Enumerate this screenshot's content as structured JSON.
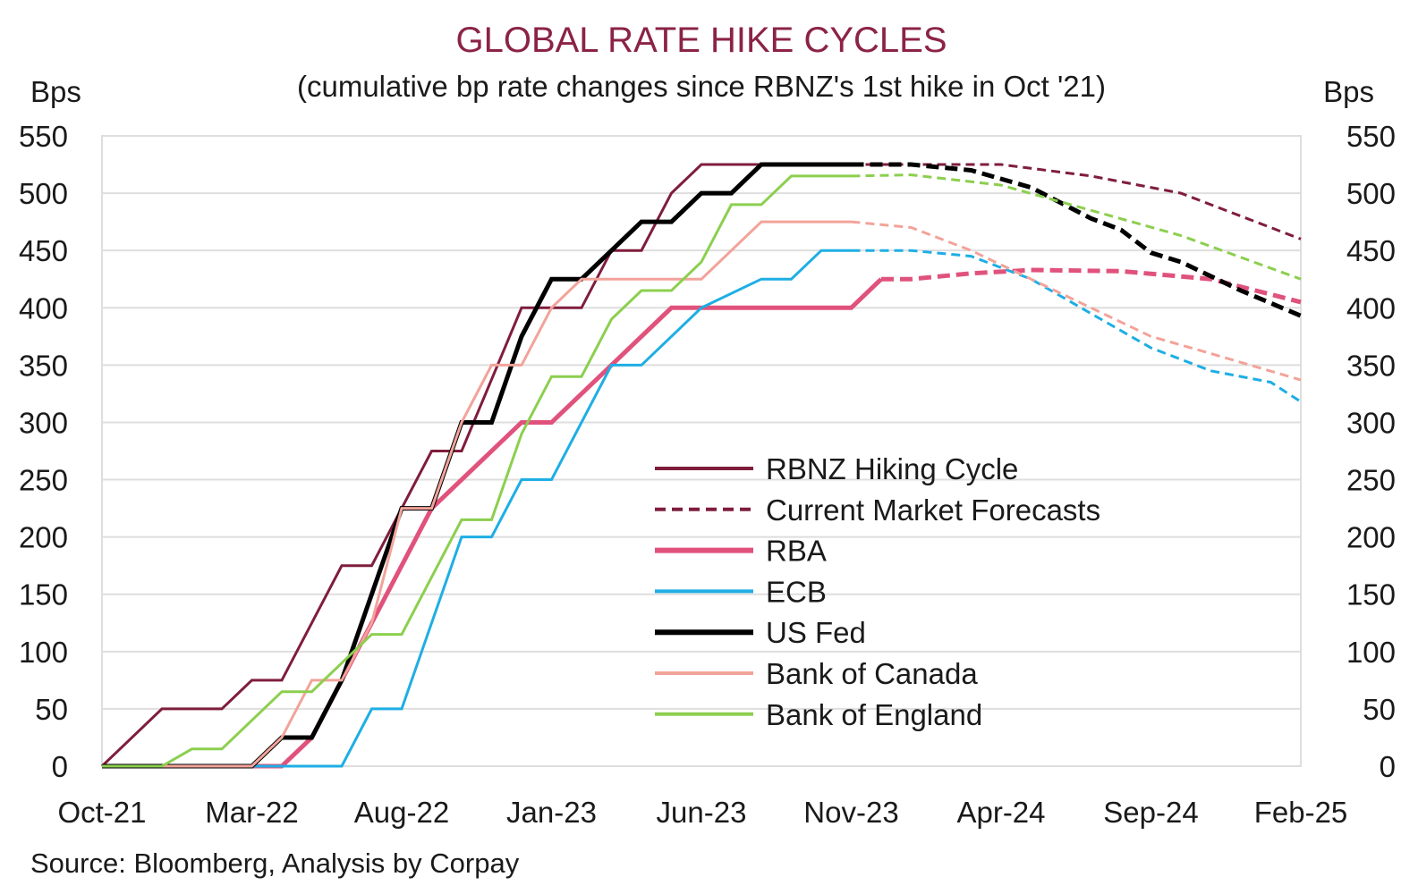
{
  "chart_data": {
    "type": "line",
    "title": "GLOBAL RATE HIKE CYCLES",
    "subtitle": "(cumulative bp rate changes since RBNZ's 1st hike in Oct '21)",
    "ylabel_left": "Bps",
    "ylabel_right": "Bps",
    "ylim": [
      0,
      550
    ],
    "yticks": [
      0,
      50,
      100,
      150,
      200,
      250,
      300,
      350,
      400,
      450,
      500,
      550
    ],
    "x_range": [
      "2021-10",
      "2025-02"
    ],
    "xtick_labels": [
      "Oct-21",
      "Mar-22",
      "Aug-22",
      "Jan-23",
      "Jun-23",
      "Nov-23",
      "Apr-24",
      "Sep-24",
      "Feb-25"
    ],
    "xtick_months": [
      "2021-10",
      "2022-03",
      "2022-08",
      "2023-01",
      "2023-06",
      "2023-11",
      "2024-04",
      "2024-09",
      "2025-02"
    ],
    "grid": "horizontal",
    "legend_position": "center-right",
    "source": "Source: Bloomberg, Analysis by Corpay",
    "legend": [
      {
        "label": "RBNZ Hiking Cycle",
        "color": "#7f1d3c",
        "style": "solid"
      },
      {
        "label": "Current Market Forecasts",
        "color": "#7f1d3c",
        "style": "dashed"
      },
      {
        "label": "RBA",
        "color": "#e0527c",
        "style": "solid"
      },
      {
        "label": "ECB",
        "color": "#1eaee4",
        "style": "solid"
      },
      {
        "label": "US Fed",
        "color": "#000000",
        "style": "solid"
      },
      {
        "label": "Bank of Canada",
        "color": "#f2a39a",
        "style": "solid"
      },
      {
        "label": "Bank of England",
        "color": "#8ccf4f",
        "style": "solid"
      }
    ],
    "series": [
      {
        "name": "RBNZ Hiking Cycle",
        "color": "#7f1d3c",
        "width": 3,
        "actual": [
          [
            "2021-10",
            0
          ],
          [
            "2021-12",
            50
          ],
          [
            "2022-02",
            50
          ],
          [
            "2022-03",
            75
          ],
          [
            "2022-04",
            75
          ],
          [
            "2022-06",
            175
          ],
          [
            "2022-07",
            175
          ],
          [
            "2022-09",
            275
          ],
          [
            "2022-10",
            275
          ],
          [
            "2022-12",
            400
          ],
          [
            "2023-02",
            400
          ],
          [
            "2023-03",
            450
          ],
          [
            "2023-04",
            450
          ],
          [
            "2023-05",
            500
          ],
          [
            "2023-06",
            525
          ],
          [
            "2023-11",
            525
          ]
        ],
        "forecast": [
          [
            "2023-11",
            525
          ],
          [
            "2024-01",
            525
          ],
          [
            "2024-04",
            525
          ],
          [
            "2024-07",
            515
          ],
          [
            "2024-10",
            500
          ],
          [
            "2025-02",
            460
          ]
        ]
      },
      {
        "name": "RBA",
        "color": "#e0527c",
        "width": 5,
        "actual": [
          [
            "2021-10",
            0
          ],
          [
            "2022-04",
            0
          ],
          [
            "2022-05",
            25
          ],
          [
            "2022-06",
            75
          ],
          [
            "2022-08",
            175
          ],
          [
            "2022-09",
            225
          ],
          [
            "2022-11",
            275
          ],
          [
            "2022-12",
            300
          ],
          [
            "2023-01",
            300
          ],
          [
            "2023-03",
            350
          ],
          [
            "2023-05",
            400
          ],
          [
            "2023-11",
            400
          ],
          [
            "2023-12",
            425
          ]
        ],
        "forecast": [
          [
            "2023-12",
            425
          ],
          [
            "2024-01",
            425
          ],
          [
            "2024-03",
            430
          ],
          [
            "2024-05",
            433
          ],
          [
            "2024-08",
            432
          ],
          [
            "2024-11",
            425
          ],
          [
            "2025-02",
            405
          ]
        ]
      },
      {
        "name": "ECB",
        "color": "#1eaee4",
        "width": 3,
        "actual": [
          [
            "2021-10",
            0
          ],
          [
            "2022-06",
            0
          ],
          [
            "2022-07",
            50
          ],
          [
            "2022-08",
            50
          ],
          [
            "2022-10",
            200
          ],
          [
            "2022-11",
            200
          ],
          [
            "2022-12",
            250
          ],
          [
            "2023-01",
            250
          ],
          [
            "2023-03",
            350
          ],
          [
            "2023-04",
            350
          ],
          [
            "2023-06",
            400
          ],
          [
            "2023-08",
            425
          ],
          [
            "2023-09",
            425
          ],
          [
            "2023-10",
            450
          ],
          [
            "2023-11",
            450
          ]
        ],
        "forecast": [
          [
            "2023-11",
            450
          ],
          [
            "2024-01",
            450
          ],
          [
            "2024-03",
            445
          ],
          [
            "2024-05",
            425
          ],
          [
            "2024-07",
            395
          ],
          [
            "2024-09",
            365
          ],
          [
            "2024-11",
            345
          ],
          [
            "2025-01",
            335
          ],
          [
            "2025-02",
            318
          ]
        ]
      },
      {
        "name": "US Fed",
        "color": "#000000",
        "width": 5,
        "actual": [
          [
            "2021-10",
            0
          ],
          [
            "2022-03",
            0
          ],
          [
            "2022-04",
            25
          ],
          [
            "2022-05",
            25
          ],
          [
            "2022-06",
            75
          ],
          [
            "2022-07",
            150
          ],
          [
            "2022-08",
            225
          ],
          [
            "2022-09",
            225
          ],
          [
            "2022-10",
            300
          ],
          [
            "2022-11",
            300
          ],
          [
            "2022-12",
            375
          ],
          [
            "2023-01",
            425
          ],
          [
            "2023-02",
            425
          ],
          [
            "2023-03",
            450
          ],
          [
            "2023-04",
            475
          ],
          [
            "2023-05",
            475
          ],
          [
            "2023-06",
            500
          ],
          [
            "2023-07",
            500
          ],
          [
            "2023-08",
            525
          ],
          [
            "2023-11",
            525
          ]
        ],
        "forecast": [
          [
            "2023-11",
            525
          ],
          [
            "2024-01",
            525
          ],
          [
            "2024-03",
            520
          ],
          [
            "2024-05",
            505
          ],
          [
            "2024-07",
            478
          ],
          [
            "2024-08",
            468
          ],
          [
            "2024-09",
            448
          ],
          [
            "2024-10",
            440
          ],
          [
            "2024-12",
            415
          ],
          [
            "2025-02",
            393
          ]
        ]
      },
      {
        "name": "Bank of Canada",
        "color": "#f2a39a",
        "width": 3,
        "actual": [
          [
            "2021-10",
            0
          ],
          [
            "2022-03",
            0
          ],
          [
            "2022-04",
            25
          ],
          [
            "2022-05",
            75
          ],
          [
            "2022-06",
            75
          ],
          [
            "2022-07",
            125
          ],
          [
            "2022-08",
            225
          ],
          [
            "2022-09",
            225
          ],
          [
            "2022-10",
            300
          ],
          [
            "2022-11",
            350
          ],
          [
            "2022-12",
            350
          ],
          [
            "2023-01",
            400
          ],
          [
            "2023-02",
            425
          ],
          [
            "2023-06",
            425
          ],
          [
            "2023-07",
            450
          ],
          [
            "2023-08",
            475
          ],
          [
            "2023-11",
            475
          ]
        ],
        "forecast": [
          [
            "2023-11",
            475
          ],
          [
            "2024-01",
            470
          ],
          [
            "2024-03",
            450
          ],
          [
            "2024-05",
            425
          ],
          [
            "2024-07",
            400
          ],
          [
            "2024-09",
            375
          ],
          [
            "2024-11",
            360
          ],
          [
            "2025-02",
            337
          ]
        ]
      },
      {
        "name": "Bank of England",
        "color": "#8ccf4f",
        "width": 3,
        "actual": [
          [
            "2021-10",
            0
          ],
          [
            "2021-12",
            0
          ],
          [
            "2022-01",
            15
          ],
          [
            "2022-02",
            15
          ],
          [
            "2022-04",
            65
          ],
          [
            "2022-05",
            65
          ],
          [
            "2022-07",
            115
          ],
          [
            "2022-08",
            115
          ],
          [
            "2022-10",
            215
          ],
          [
            "2022-11",
            215
          ],
          [
            "2022-12",
            290
          ],
          [
            "2023-01",
            340
          ],
          [
            "2023-02",
            340
          ],
          [
            "2023-03",
            390
          ],
          [
            "2023-04",
            415
          ],
          [
            "2023-05",
            415
          ],
          [
            "2023-06",
            440
          ],
          [
            "2023-07",
            490
          ],
          [
            "2023-08",
            490
          ],
          [
            "2023-09",
            515
          ],
          [
            "2023-11",
            515
          ]
        ],
        "forecast": [
          [
            "2023-11",
            515
          ],
          [
            "2024-01",
            516
          ],
          [
            "2024-04",
            507
          ],
          [
            "2024-07",
            485
          ],
          [
            "2024-10",
            463
          ],
          [
            "2025-02",
            425
          ]
        ]
      }
    ]
  }
}
